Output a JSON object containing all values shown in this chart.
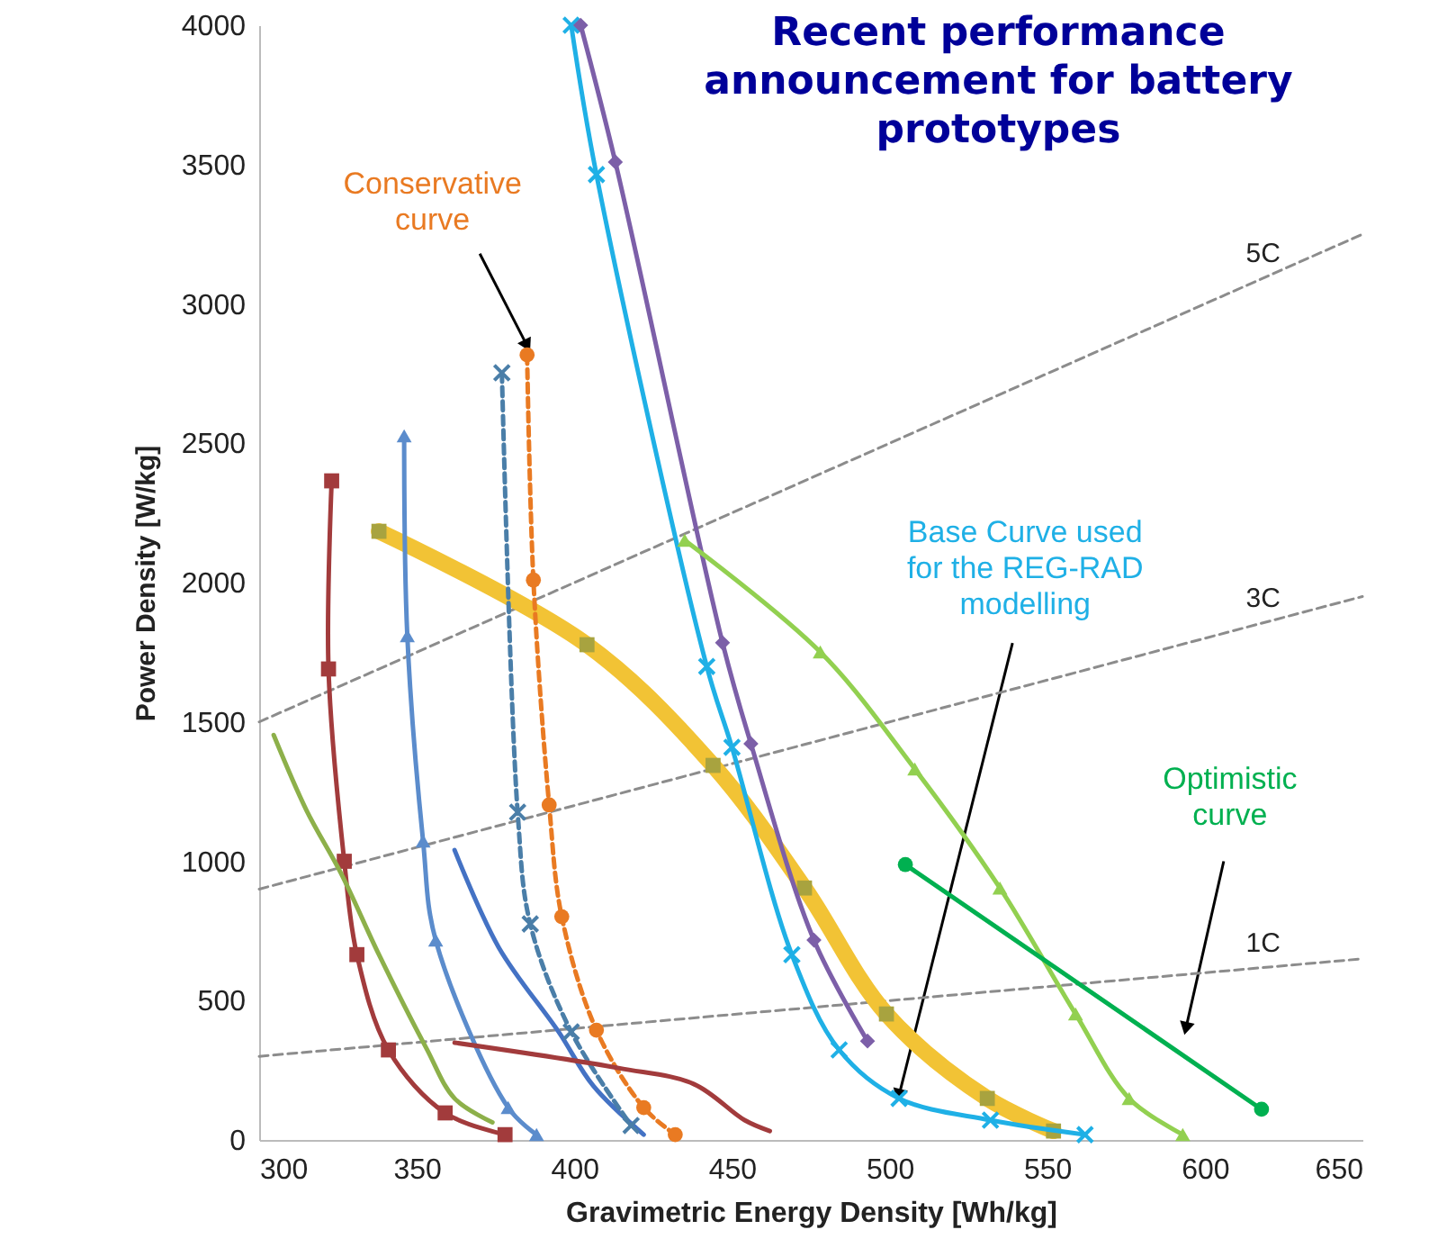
{
  "chart_data": {
    "type": "line",
    "title": "Recent performance announcement for battery prototypes",
    "xlabel": "Gravimetric Energy Density [Wh/kg]",
    "ylabel": "Power Density [W/kg]",
    "xlim": [
      300,
      650
    ],
    "ylim": [
      0,
      4000
    ],
    "xticks": [
      300,
      350,
      400,
      450,
      500,
      550,
      600,
      650
    ],
    "yticks": [
      0,
      500,
      1000,
      1500,
      2000,
      2500,
      3000,
      3500,
      4000
    ],
    "series": [
      {
        "name": "5C",
        "color": "#8c8c8c",
        "line_style": "dashed",
        "marker": "none",
        "x": [
          300,
          650
        ],
        "values": [
          1500,
          3250
        ]
      },
      {
        "name": "3C",
        "color": "#8c8c8c",
        "line_style": "dashed",
        "marker": "none",
        "x": [
          300,
          650
        ],
        "values": [
          900,
          1950
        ]
      },
      {
        "name": "1C",
        "color": "#8c8c8c",
        "line_style": "dashed",
        "marker": "none",
        "x": [
          300,
          650
        ],
        "values": [
          300,
          650
        ]
      },
      {
        "color": "#f2c335",
        "marker": "square",
        "x": [
          338,
          404,
          444,
          473,
          499,
          531,
          552
        ],
        "values": [
          2184,
          1777,
          1344,
          904,
          452,
          149,
          32
        ]
      },
      {
        "color": "#a23b3c",
        "marker": "square",
        "x": [
          323,
          322,
          327,
          331,
          341,
          359,
          378
        ],
        "values": [
          2365,
          1690,
          1000,
          665,
          323,
          97,
          19
        ]
      },
      {
        "color": "#8db04a",
        "marker": "none",
        "x": [
          304.6,
          315,
          326,
          338,
          353,
          362,
          374
        ],
        "values": [
          1453,
          1183,
          956,
          665,
          330,
          149,
          63
        ]
      },
      {
        "color": "#5b8ccc",
        "marker": "triangle",
        "x": [
          346,
          347,
          352,
          356,
          379,
          388
        ],
        "values": [
          2527,
          1809,
          1073,
          717,
          116,
          19
        ]
      },
      {
        "color": "#4472c4",
        "marker": "none",
        "x": [
          362,
          376,
          395,
          406,
          422
        ],
        "values": [
          1040,
          691,
          388,
          194,
          19
        ]
      },
      {
        "color": "#4a7ea8",
        "marker": "cross",
        "line_style": "dashed",
        "x": [
          377,
          382,
          386,
          399,
          418
        ],
        "values": [
          2753,
          1176,
          775,
          388,
          52
        ]
      },
      {
        "color": "#e97a22",
        "marker": "circle",
        "line_style": "dashed",
        "x": [
          385,
          387,
          392,
          396,
          407,
          422,
          432
        ],
        "values": [
          2817,
          2009,
          1202,
          801,
          394,
          116,
          19
        ]
      },
      {
        "color": "#a23b3c",
        "marker": "none",
        "x": [
          362,
          414,
          438,
          454,
          462
        ],
        "values": [
          349,
          258,
          200,
          71,
          32
        ]
      },
      {
        "color": "#1fb0e6",
        "marker": "cross",
        "x": [
          399,
          407,
          442,
          450,
          469,
          484,
          503,
          532,
          562
        ],
        "values": [
          4000,
          3464,
          1699,
          1409,
          665,
          323,
          149,
          71,
          19
        ]
      },
      {
        "color": "#7c5fa8",
        "marker": "diamond",
        "x": [
          402,
          413,
          447,
          456,
          476,
          493
        ],
        "values": [
          4000,
          3509,
          1784,
          1422,
          717,
          355
        ]
      },
      {
        "color": "#92d050",
        "marker": "triangle",
        "x": [
          435,
          478,
          508,
          535,
          559,
          576,
          593
        ],
        "values": [
          2152,
          1751,
          1331,
          904,
          452,
          149,
          19
        ]
      },
      {
        "color": "#00b050",
        "marker": "circle",
        "x": [
          505,
          618
        ],
        "values": [
          988,
          110
        ]
      }
    ],
    "annotations": [
      {
        "text": "Conservative curve",
        "x": 385,
        "y": 2850
      },
      {
        "text": "Base Curve used for the REG-RAD modelling",
        "x": 503,
        "y": 160
      },
      {
        "text": "Optimistic curve",
        "x": 594,
        "y": 400
      }
    ]
  }
}
